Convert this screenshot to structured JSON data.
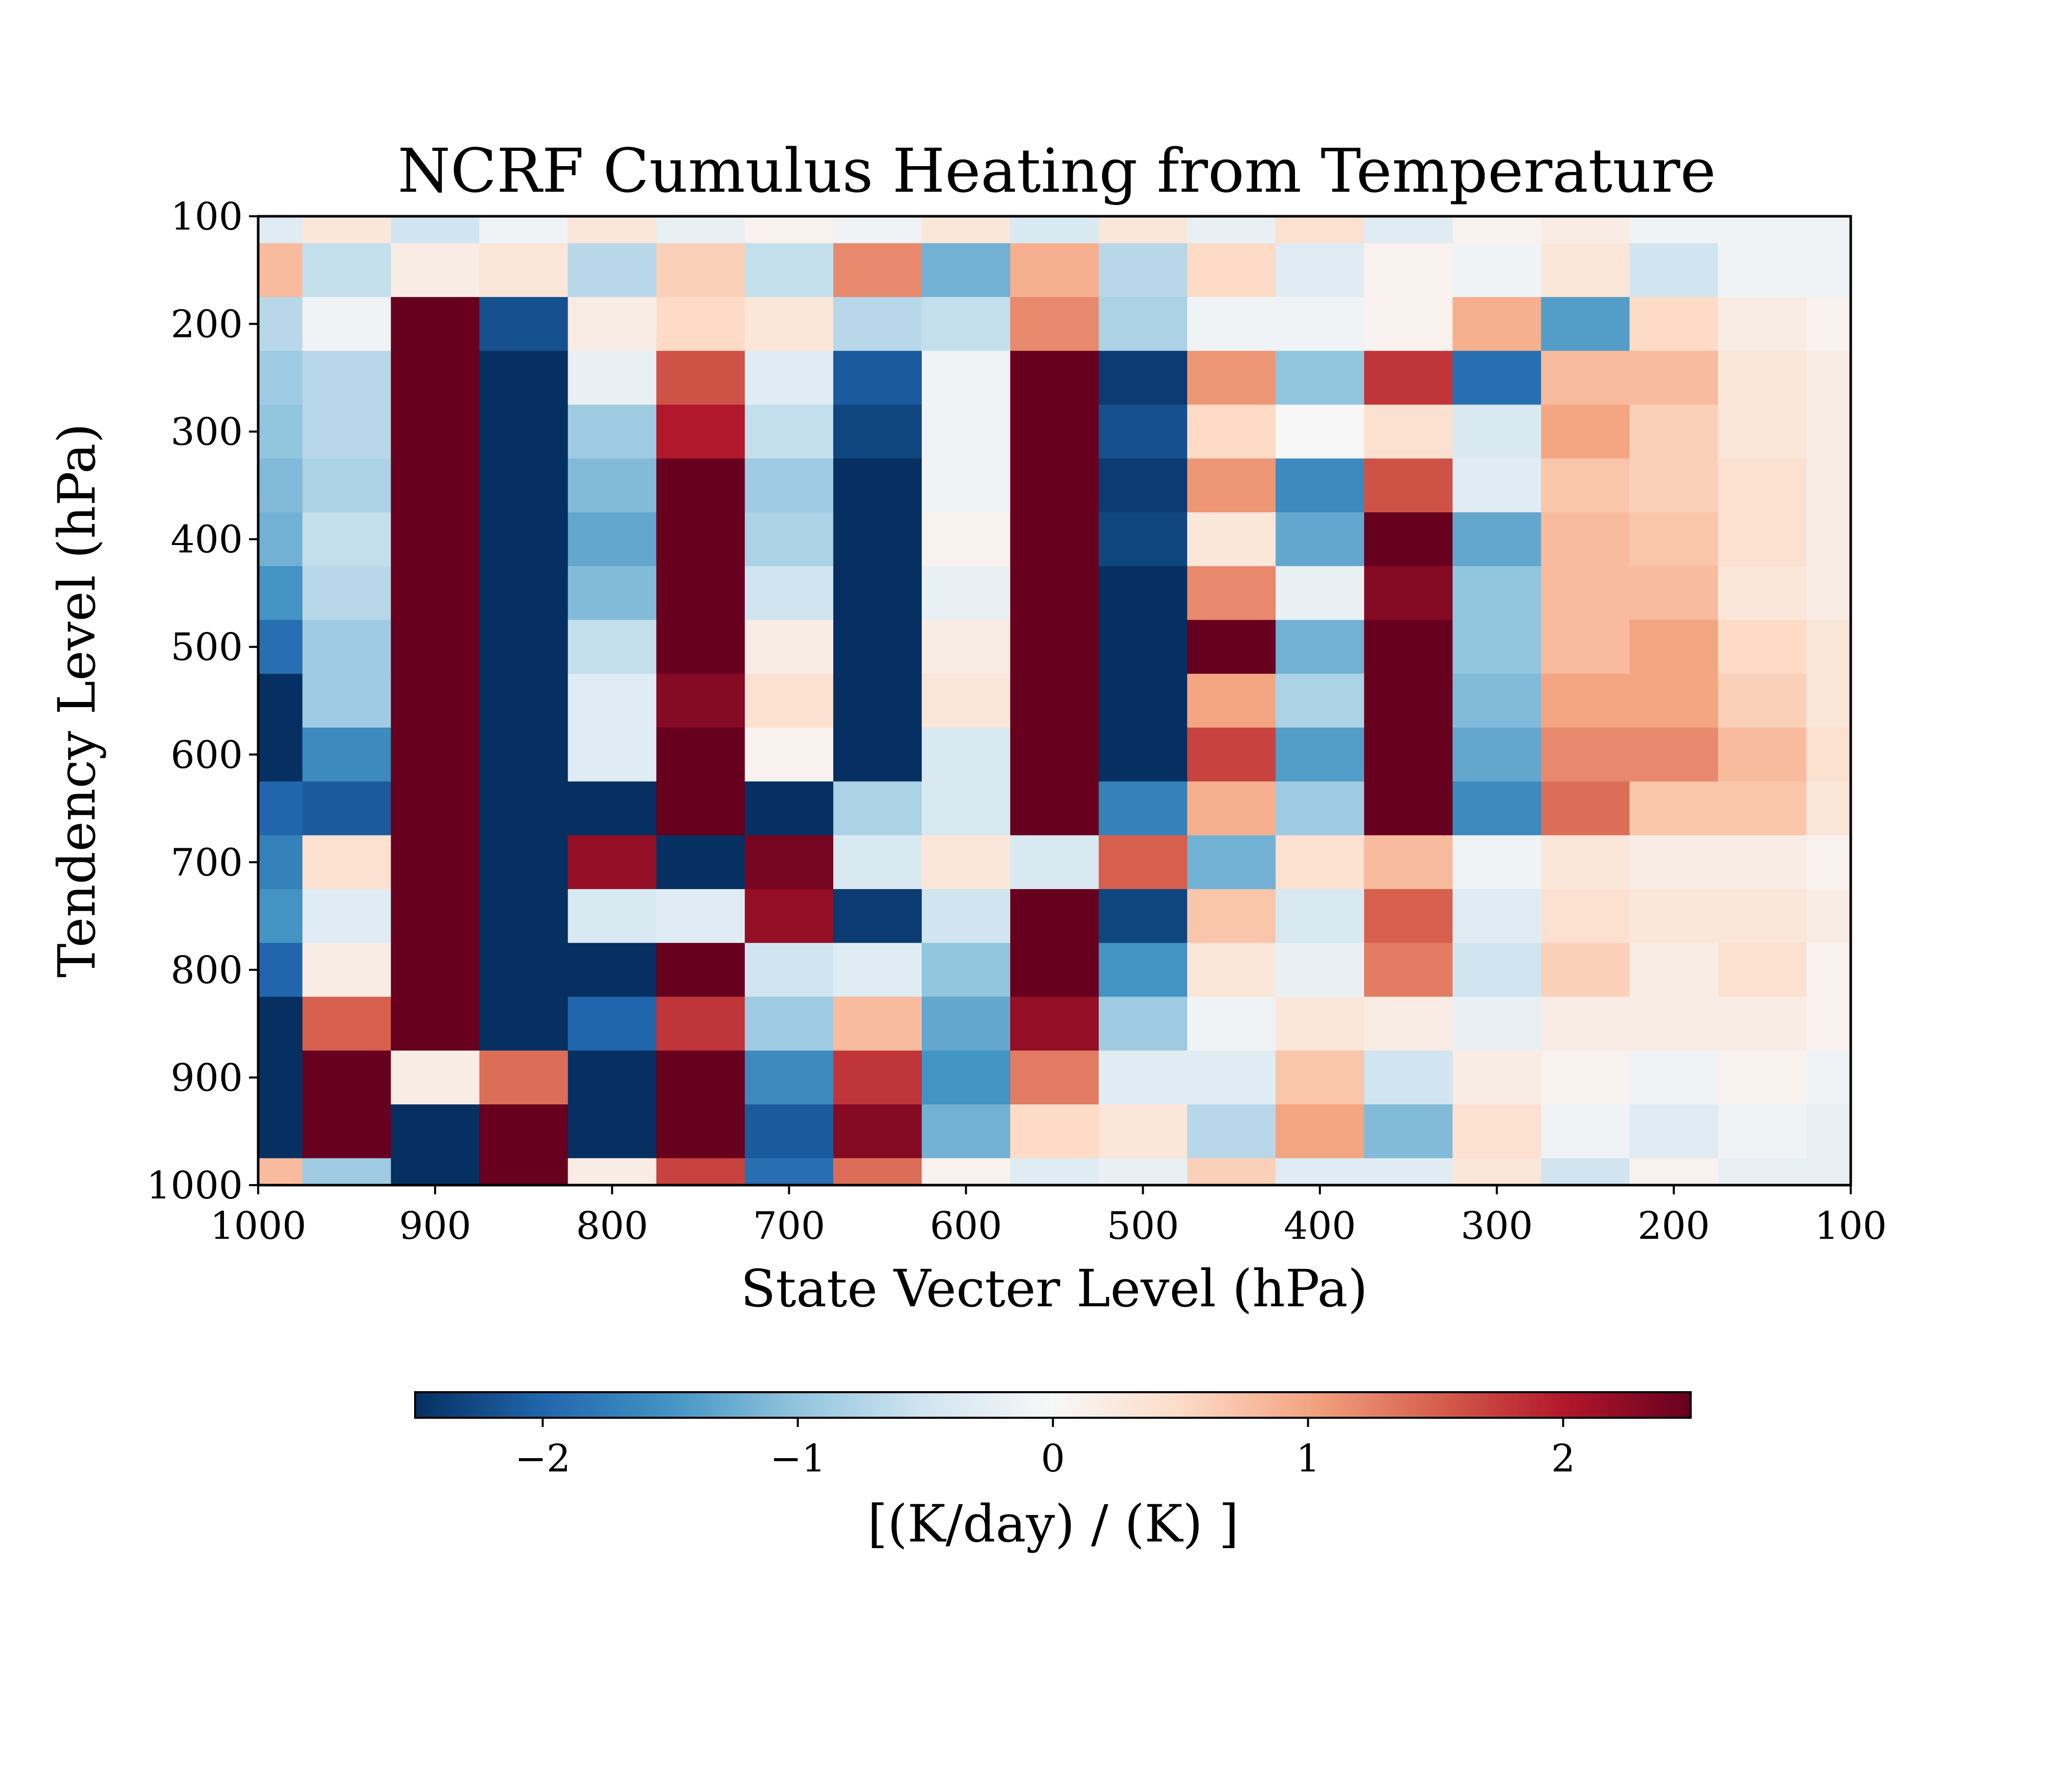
{
  "chart_data": {
    "type": "heatmap",
    "title": "NCRF Cumulus Heating from Temperature",
    "xlabel": "State Vecter Level (hPa)",
    "ylabel": "Tendency Level (hPa)",
    "x_ticks": [
      "1000",
      "900",
      "800",
      "700",
      "600",
      "500",
      "400",
      "300",
      "200",
      "100"
    ],
    "y_ticks": [
      "100",
      "200",
      "300",
      "400",
      "500",
      "600",
      "700",
      "800",
      "900",
      "1000"
    ],
    "x_range": [
      1000,
      100
    ],
    "y_range": [
      100,
      1000
    ],
    "x_levels_hPa": [
      1000,
      950,
      900,
      850,
      800,
      750,
      700,
      650,
      600,
      550,
      500,
      450,
      400,
      350,
      300,
      250,
      200,
      150,
      100
    ],
    "y_levels_hPa": [
      100,
      150,
      200,
      250,
      300,
      350,
      400,
      450,
      500,
      550,
      600,
      650,
      700,
      750,
      800,
      850,
      900,
      950,
      1000
    ],
    "values": [
      [
        -0.3,
        0.3,
        -0.5,
        -0.1,
        0.3,
        -0.2,
        0.1,
        -0.1,
        0.3,
        -0.4,
        0.3,
        -0.2,
        0.4,
        -0.3,
        0.1,
        0.2,
        -0.1,
        -0.1,
        -0.1
      ],
      [
        0.8,
        -0.6,
        0.2,
        0.3,
        -0.7,
        0.6,
        -0.6,
        1.2,
        -1.2,
        0.9,
        -0.7,
        0.5,
        -0.3,
        0.1,
        -0.1,
        0.3,
        -0.5,
        -0.1,
        -0.1
      ],
      [
        -0.7,
        -0.1,
        2.5,
        -2.2,
        0.2,
        0.5,
        0.3,
        -0.7,
        -0.6,
        1.2,
        -0.8,
        -0.1,
        -0.1,
        0.1,
        0.9,
        -1.4,
        0.5,
        0.2,
        0.1
      ],
      [
        -0.9,
        -0.7,
        2.5,
        -2.5,
        -0.2,
        1.6,
        -0.3,
        -2.1,
        -0.1,
        2.5,
        -2.4,
        1.1,
        -1.0,
        1.8,
        -1.9,
        0.8,
        0.8,
        0.3,
        0.2
      ],
      [
        -1.0,
        -0.7,
        2.5,
        -2.5,
        -0.9,
        2.0,
        -0.6,
        -2.3,
        -0.1,
        2.5,
        -2.2,
        0.5,
        0.0,
        0.4,
        -0.4,
        1.0,
        0.6,
        0.3,
        0.2
      ],
      [
        -1.1,
        -0.8,
        2.5,
        -2.5,
        -1.1,
        2.5,
        -0.9,
        -2.5,
        -0.1,
        2.5,
        -2.4,
        1.1,
        -1.6,
        1.6,
        -0.3,
        0.7,
        0.6,
        0.4,
        0.2
      ],
      [
        -1.2,
        -0.6,
        2.5,
        -2.5,
        -1.3,
        2.5,
        -0.8,
        -2.5,
        0.1,
        2.5,
        -2.3,
        0.3,
        -1.3,
        2.5,
        -1.3,
        0.8,
        0.7,
        0.4,
        0.2
      ],
      [
        -1.5,
        -0.7,
        2.5,
        -2.5,
        -1.1,
        2.5,
        -0.5,
        -2.5,
        -0.2,
        2.5,
        -2.5,
        1.2,
        -0.2,
        2.3,
        -1.0,
        0.8,
        0.8,
        0.3,
        0.2
      ],
      [
        -1.9,
        -0.9,
        2.5,
        -2.5,
        -0.6,
        2.5,
        0.2,
        -2.5,
        0.2,
        2.5,
        -2.5,
        2.5,
        -1.2,
        2.5,
        -1.0,
        0.8,
        1.0,
        0.5,
        0.3
      ],
      [
        -2.5,
        -0.9,
        2.5,
        -2.5,
        -0.3,
        2.3,
        0.4,
        -2.5,
        0.3,
        2.5,
        -2.5,
        1.0,
        -0.8,
        2.5,
        -1.1,
        1.0,
        1.0,
        0.6,
        0.3
      ],
      [
        -2.5,
        -1.6,
        2.5,
        -2.5,
        -0.3,
        2.5,
        0.1,
        -2.5,
        -0.4,
        2.5,
        -2.5,
        1.7,
        -1.4,
        2.5,
        -1.3,
        1.2,
        1.2,
        0.8,
        0.4
      ],
      [
        -2.0,
        -2.1,
        2.5,
        -2.5,
        -2.5,
        2.5,
        -2.5,
        -0.8,
        -0.4,
        2.5,
        -1.7,
        0.9,
        -0.9,
        2.5,
        -1.6,
        1.4,
        0.7,
        0.7,
        0.3
      ],
      [
        -1.7,
        0.4,
        2.5,
        -2.5,
        2.2,
        -2.5,
        2.4,
        -0.4,
        0.3,
        -0.4,
        1.5,
        -1.2,
        0.4,
        0.8,
        -0.1,
        0.3,
        0.2,
        0.2,
        0.1
      ],
      [
        -1.5,
        -0.3,
        2.5,
        -2.5,
        -0.4,
        -0.3,
        2.2,
        -2.4,
        -0.5,
        2.5,
        -2.3,
        0.7,
        -0.4,
        1.5,
        -0.3,
        0.4,
        0.3,
        0.3,
        0.2
      ],
      [
        -2.0,
        0.2,
        2.5,
        -2.5,
        -2.5,
        2.5,
        -0.5,
        -0.3,
        -1.0,
        2.5,
        -1.5,
        0.3,
        -0.2,
        1.3,
        -0.5,
        0.6,
        0.2,
        0.4,
        0.1
      ],
      [
        -2.5,
        1.5,
        2.5,
        -2.5,
        -2.0,
        1.8,
        -0.9,
        0.8,
        -1.3,
        2.2,
        -0.9,
        -0.1,
        0.3,
        0.2,
        -0.2,
        0.2,
        0.2,
        0.2,
        0.1
      ],
      [
        -2.5,
        2.5,
        0.2,
        1.4,
        -2.5,
        2.5,
        -1.6,
        1.8,
        -1.5,
        1.3,
        -0.3,
        -0.3,
        0.7,
        -0.5,
        0.2,
        0.1,
        -0.1,
        0.1,
        -0.1
      ],
      [
        -2.5,
        2.5,
        -2.5,
        2.5,
        -2.5,
        2.5,
        -2.1,
        2.3,
        -1.2,
        0.5,
        0.3,
        -0.7,
        1.0,
        -1.1,
        0.4,
        -0.1,
        -0.3,
        -0.1,
        -0.2
      ],
      [
        0.8,
        -0.9,
        -2.5,
        2.5,
        0.2,
        1.7,
        -1.9,
        1.4,
        0.1,
        -0.3,
        -0.2,
        0.6,
        -0.3,
        -0.3,
        0.3,
        -0.5,
        0.1,
        -0.2,
        -0.2
      ]
    ],
    "colorbar": {
      "label": "[(K/day) / (K) ]",
      "range": [
        -2.5,
        2.5
      ],
      "ticks": [
        "−2",
        "−1",
        "0",
        "1",
        "2"
      ],
      "tick_values": [
        -2,
        -1,
        0,
        1,
        2
      ],
      "colormap": "RdBu_r",
      "colors": [
        "#053061",
        "#2166ac",
        "#4393c3",
        "#92c5de",
        "#d1e5f0",
        "#f7f7f7",
        "#fddbc7",
        "#f4a582",
        "#d6604d",
        "#b2182b",
        "#67001f"
      ]
    },
    "grid": false
  }
}
